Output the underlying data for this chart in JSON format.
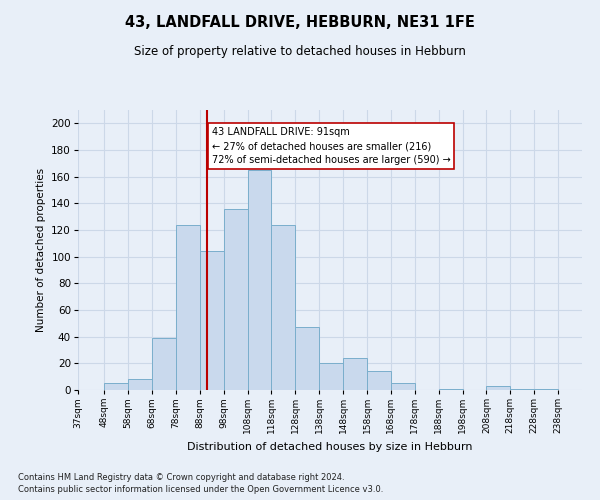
{
  "title": "43, LANDFALL DRIVE, HEBBURN, NE31 1FE",
  "subtitle": "Size of property relative to detached houses in Hebburn",
  "xlabel": "Distribution of detached houses by size in Hebburn",
  "ylabel": "Number of detached properties",
  "bar_left_edges": [
    37,
    48,
    58,
    68,
    78,
    88,
    98,
    108,
    118,
    128,
    138,
    148,
    158,
    168,
    178,
    188,
    198,
    208,
    218,
    228
  ],
  "bar_widths": [
    11,
    10,
    10,
    10,
    10,
    10,
    10,
    10,
    10,
    10,
    10,
    10,
    10,
    10,
    10,
    10,
    10,
    10,
    10,
    10
  ],
  "bar_heights": [
    0,
    5,
    8,
    39,
    124,
    104,
    136,
    165,
    124,
    47,
    20,
    24,
    14,
    5,
    0,
    1,
    0,
    3,
    1,
    1
  ],
  "bar_color": "#c9d9ed",
  "bar_edge_color": "#7aaecc",
  "ylim": [
    0,
    210
  ],
  "yticks": [
    0,
    20,
    40,
    60,
    80,
    100,
    120,
    140,
    160,
    180,
    200
  ],
  "tick_labels": [
    "37sqm",
    "48sqm",
    "58sqm",
    "68sqm",
    "78sqm",
    "88sqm",
    "98sqm",
    "108sqm",
    "118sqm",
    "128sqm",
    "138sqm",
    "148sqm",
    "158sqm",
    "168sqm",
    "178sqm",
    "188sqm",
    "198sqm",
    "208sqm",
    "218sqm",
    "228sqm",
    "238sqm"
  ],
  "property_size": 91,
  "red_line_color": "#bb0000",
  "annotation_text": "43 LANDFALL DRIVE: 91sqm\n← 27% of detached houses are smaller (216)\n72% of semi-detached houses are larger (590) →",
  "annotation_box_color": "#ffffff",
  "annotation_box_edge_color": "#bb0000",
  "grid_color": "#ccd8e8",
  "background_color": "#e8eff8",
  "footer_line1": "Contains HM Land Registry data © Crown copyright and database right 2024.",
  "footer_line2": "Contains public sector information licensed under the Open Government Licence v3.0."
}
